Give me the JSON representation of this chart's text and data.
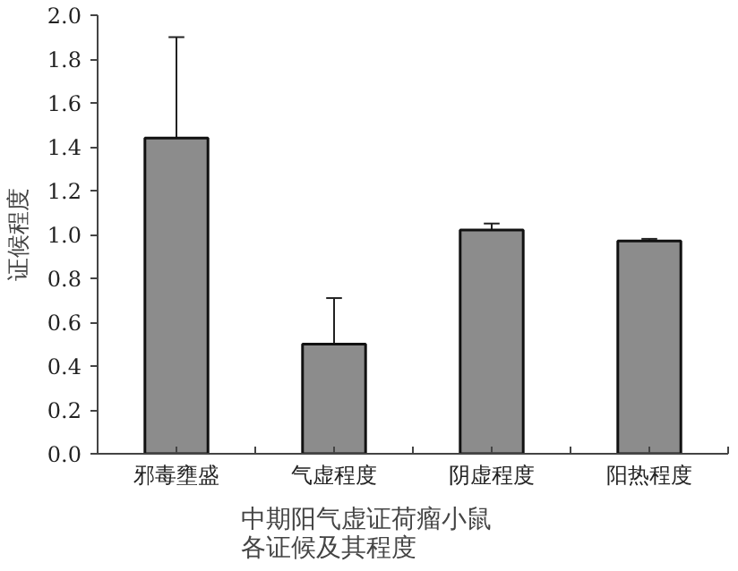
{
  "chart_data": {
    "type": "bar",
    "title": "中期阳气虚证荷瘤小鼠各证候及其程度",
    "ylabel": "证候程度",
    "categories": [
      "邪毒壅盛",
      "气虚程度",
      "阴虚程度",
      "阳热程度"
    ],
    "values": [
      1.44,
      0.5,
      1.02,
      0.97
    ],
    "errors": [
      0.46,
      0.21,
      0.03,
      0.01
    ],
    "color": "#8c8c8c",
    "ylim": [
      0,
      2
    ],
    "yticks": [
      {
        "value": 0,
        "label": "0.0"
      },
      {
        "value": 0.2,
        "label": "0.2"
      },
      {
        "value": 0.4,
        "label": "0.4"
      },
      {
        "value": 0.6,
        "label": "0.6"
      },
      {
        "value": 0.8,
        "label": "0.8"
      },
      {
        "value": 1,
        "label": "1.0"
      },
      {
        "value": 1.2,
        "label": "1.2"
      },
      {
        "value": 1.4,
        "label": "1.4"
      },
      {
        "value": 1.6,
        "label": "1.6"
      },
      {
        "value": 1.8,
        "label": "1.8"
      },
      {
        "value": 2,
        "label": "2.0"
      }
    ],
    "grid": false
  }
}
